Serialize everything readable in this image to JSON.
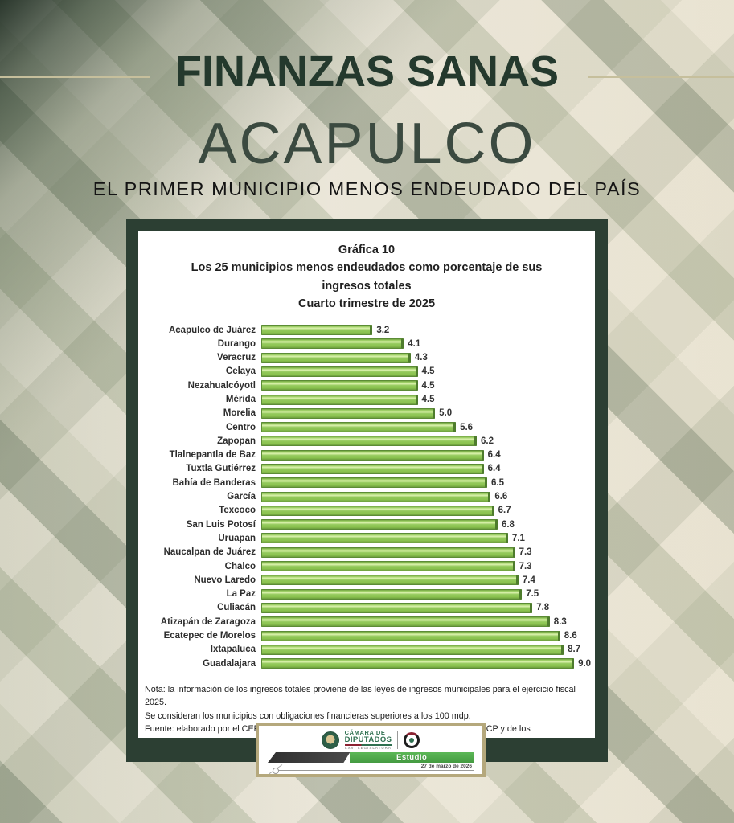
{
  "header": {
    "kicker": "FINANZAS SANAS",
    "title": "ACAPULCO",
    "subtitle": "EL PRIMER MUNICIPIO MENOS ENDEUDADO DEL PAÍS"
  },
  "chart_card": {
    "title1": "Gráfica 10",
    "title2": "Los 25 municipios menos endeudados como porcentaje de sus ingresos totales",
    "title3": "Cuarto trimestre de 2025",
    "note1": "Nota: la información de los ingresos totales proviene de las leyes de ingresos municipales para el ejercicio fiscal 2025.",
    "note2": "Se consideran los municipios con obligaciones financieras superiores a los 100 mdp.",
    "note3": "Fuente:  elaborado por el CEFP, Ifigenia Martínez y Hernández, con información de la SHCP y de los Ayuntamientos."
  },
  "chart_data": {
    "type": "bar",
    "orientation": "horizontal",
    "title": "Gráfica 10 — Los 25 municipios menos endeudados como porcentaje de sus ingresos totales — Cuarto trimestre de 2025",
    "categories": [
      "Acapulco de Juárez",
      "Durango",
      "Veracruz",
      "Celaya",
      "Nezahualcóyotl",
      "Mérida",
      "Morelia",
      "Centro",
      "Zapopan",
      "Tlalnepantla de Baz",
      "Tuxtla Gutiérrez",
      "Bahía de Banderas",
      "García",
      "Texcoco",
      "San Luis Potosí",
      "Uruapan",
      "Naucalpan de Juárez",
      "Chalco",
      "Nuevo Laredo",
      "La Paz",
      "Culiacán",
      "Atizapán de Zaragoza",
      "Ecatepec de Morelos",
      "Ixtapaluca",
      "Guadalajara"
    ],
    "values": [
      3.2,
      4.1,
      4.3,
      4.5,
      4.5,
      4.5,
      5.0,
      5.6,
      6.2,
      6.4,
      6.4,
      6.5,
      6.6,
      6.7,
      6.8,
      7.1,
      7.3,
      7.3,
      7.4,
      7.5,
      7.8,
      8.3,
      8.6,
      8.7,
      9.0
    ],
    "xlabel": "",
    "ylabel": "",
    "xlim": [
      0,
      9.6
    ],
    "grid": false,
    "legend": false,
    "bar_color": "#8cc653",
    "value_labels": true
  },
  "banner": {
    "org_line1": "CÁMARA DE",
    "org_line2": "DIPUTADOS",
    "org_line3": "LXVI LEGISLATURA",
    "tag": "Estudio",
    "date": "27 de marzo de 2026"
  },
  "colors": {
    "header_green": "#24392d",
    "card_border_green": "#2c3f33",
    "bar_green": "#8cc653",
    "banner_border_tan": "#b5a87c",
    "banner_green": "#4fae4b"
  }
}
